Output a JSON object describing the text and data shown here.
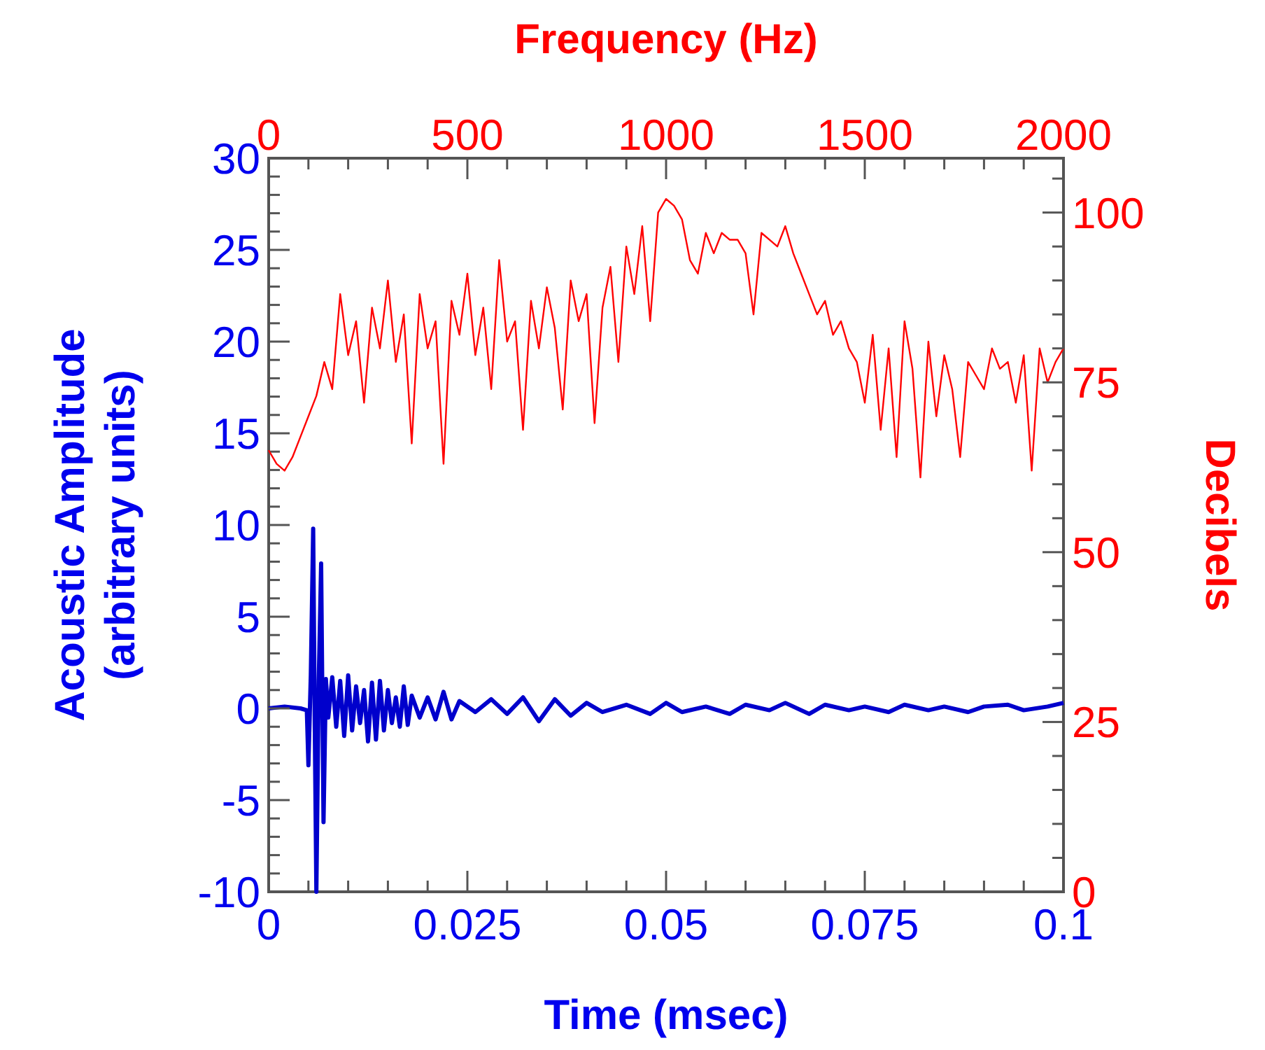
{
  "chart_data": [
    {
      "type": "line",
      "xlabel": "Time (msec)",
      "ylabel": "Acoustic Amplitude\n(arbitrary units)",
      "xlim": [
        0,
        0.1
      ],
      "ylim": [
        -10,
        30
      ],
      "xticks": [
        0,
        {
          "value": 0.005,
          "label": null
        },
        {
          "value": 0.01,
          "label": null
        },
        {
          "value": 0.015,
          "label": null
        },
        {
          "value": 0.02,
          "label": null
        },
        0.025,
        {
          "value": 0.03,
          "label": null
        },
        {
          "value": 0.035,
          "label": null
        },
        {
          "value": 0.04,
          "label": null
        },
        {
          "value": 0.045,
          "label": null
        },
        0.05,
        {
          "value": 0.055,
          "label": null
        },
        {
          "value": 0.06,
          "label": null
        },
        {
          "value": 0.065,
          "label": null
        },
        {
          "value": 0.07,
          "label": null
        },
        0.075,
        {
          "value": 0.08,
          "label": null
        },
        {
          "value": 0.085,
          "label": null
        },
        {
          "value": 0.09,
          "label": null
        },
        {
          "value": 0.095,
          "label": null
        },
        0.1
      ],
      "yticks": [
        -10,
        {
          "value": -9,
          "label": null
        },
        {
          "value": -8,
          "label": null
        },
        {
          "value": -7,
          "label": null
        },
        {
          "value": -6,
          "label": null
        },
        -5,
        {
          "value": -4,
          "label": null
        },
        {
          "value": -3,
          "label": null
        },
        {
          "value": -2,
          "label": null
        },
        {
          "value": -1,
          "label": null
        },
        0,
        {
          "value": 1,
          "label": null
        },
        {
          "value": 2,
          "label": null
        },
        {
          "value": 3,
          "label": null
        },
        {
          "value": 4,
          "label": null
        },
        5,
        {
          "value": 6,
          "label": null
        },
        {
          "value": 7,
          "label": null
        },
        {
          "value": 8,
          "label": null
        },
        {
          "value": 9,
          "label": null
        },
        10,
        {
          "value": 11,
          "label": null
        },
        {
          "value": 12,
          "label": null
        },
        {
          "value": 13,
          "label": null
        },
        {
          "value": 14,
          "label": null
        },
        15,
        {
          "value": 16,
          "label": null
        },
        {
          "value": 17,
          "label": null
        },
        {
          "value": 18,
          "label": null
        },
        {
          "value": 19,
          "label": null
        },
        20,
        {
          "value": 21,
          "label": null
        },
        {
          "value": 22,
          "label": null
        },
        {
          "value": 23,
          "label": null
        },
        {
          "value": 24,
          "label": null
        },
        25,
        {
          "value": 26,
          "label": null
        },
        {
          "value": 27,
          "label": null
        },
        {
          "value": 28,
          "label": null
        },
        {
          "value": 29,
          "label": null
        },
        30
      ],
      "grid": false,
      "marker": "none",
      "series": [
        {
          "color": "#0000cc",
          "x": [
            0,
            0.002,
            0.004,
            0.0048,
            0.005,
            0.0053,
            0.0056,
            0.0058,
            0.006,
            0.0063,
            0.0066,
            0.0069,
            0.0072,
            0.0075,
            0.008,
            0.0085,
            0.009,
            0.0095,
            0.01,
            0.0105,
            0.011,
            0.0115,
            0.012,
            0.0125,
            0.013,
            0.0135,
            0.014,
            0.0145,
            0.015,
            0.0155,
            0.016,
            0.0165,
            0.017,
            0.0175,
            0.018,
            0.019,
            0.02,
            0.021,
            0.022,
            0.023,
            0.024,
            0.026,
            0.028,
            0.03,
            0.032,
            0.034,
            0.036,
            0.038,
            0.04,
            0.042,
            0.045,
            0.048,
            0.05,
            0.052,
            0.055,
            0.058,
            0.06,
            0.063,
            0.065,
            0.068,
            0.07,
            0.073,
            0.075,
            0.078,
            0.08,
            0.083,
            0.085,
            0.088,
            0.09,
            0.093,
            0.095,
            0.098,
            0.1
          ],
          "values": [
            0,
            0.1,
            0,
            -0.1,
            -3.1,
            1.8,
            9.8,
            -1,
            -10,
            1.5,
            7.9,
            -6.2,
            1.6,
            -0.5,
            1.7,
            -1,
            1.5,
            -1.5,
            1.8,
            -1.2,
            1.2,
            -0.8,
            1,
            -1.8,
            1.4,
            -1.7,
            1.5,
            -1.2,
            1,
            -0.8,
            0.6,
            -1,
            1.2,
            -0.9,
            0.7,
            -0.5,
            0.6,
            -0.6,
            0.9,
            -0.6,
            0.4,
            -0.2,
            0.5,
            -0.3,
            0.6,
            -0.7,
            0.5,
            -0.4,
            0.3,
            -0.2,
            0.2,
            -0.3,
            0.3,
            -0.2,
            0.1,
            -0.3,
            0.2,
            -0.1,
            0.3,
            -0.3,
            0.2,
            -0.1,
            0.1,
            -0.2,
            0.2,
            -0.1,
            0.1,
            -0.2,
            0.1,
            0.2,
            -0.1,
            0.1,
            0.3
          ]
        }
      ]
    },
    {
      "type": "line",
      "xlabel": "Frequency (Hz)",
      "ylabel": "Decibels",
      "xlim": [
        0,
        2000
      ],
      "ylim": [
        0,
        108
      ],
      "xticks": [
        0,
        {
          "value": 100,
          "label": null
        },
        {
          "value": 200,
          "label": null
        },
        {
          "value": 300,
          "label": null
        },
        {
          "value": 400,
          "label": null
        },
        500,
        {
          "value": 600,
          "label": null
        },
        {
          "value": 700,
          "label": null
        },
        {
          "value": 800,
          "label": null
        },
        {
          "value": 900,
          "label": null
        },
        1000,
        {
          "value": 1100,
          "label": null
        },
        {
          "value": 1200,
          "label": null
        },
        {
          "value": 1300,
          "label": null
        },
        {
          "value": 1400,
          "label": null
        },
        1500,
        {
          "value": 1600,
          "label": null
        },
        {
          "value": 1700,
          "label": null
        },
        {
          "value": 1800,
          "label": null
        },
        {
          "value": 1900,
          "label": null
        },
        2000
      ],
      "yticks": [
        0,
        {
          "value": 5,
          "label": null
        },
        {
          "value": 10,
          "label": null
        },
        {
          "value": 15,
          "label": null
        },
        {
          "value": 20,
          "label": null
        },
        25,
        {
          "value": 30,
          "label": null
        },
        {
          "value": 35,
          "label": null
        },
        {
          "value": 40,
          "label": null
        },
        {
          "value": 45,
          "label": null
        },
        50,
        {
          "value": 55,
          "label": null
        },
        {
          "value": 60,
          "label": null
        },
        {
          "value": 65,
          "label": null
        },
        {
          "value": 70,
          "label": null
        },
        75,
        {
          "value": 80,
          "label": null
        },
        {
          "value": 85,
          "label": null
        },
        {
          "value": 90,
          "label": null
        },
        {
          "value": 95,
          "label": null
        },
        100,
        {
          "value": 105,
          "label": null
        }
      ],
      "grid": false,
      "marker": "none",
      "series": [
        {
          "color": "#ff0000",
          "x": [
            0,
            20,
            40,
            60,
            80,
            100,
            120,
            140,
            160,
            180,
            200,
            220,
            240,
            260,
            280,
            300,
            320,
            340,
            360,
            380,
            400,
            420,
            440,
            460,
            480,
            500,
            520,
            540,
            560,
            580,
            600,
            620,
            640,
            660,
            680,
            700,
            720,
            740,
            760,
            780,
            800,
            820,
            840,
            860,
            880,
            900,
            920,
            940,
            960,
            980,
            1000,
            1020,
            1040,
            1060,
            1080,
            1100,
            1120,
            1140,
            1160,
            1180,
            1200,
            1220,
            1240,
            1260,
            1280,
            1300,
            1320,
            1340,
            1360,
            1380,
            1400,
            1420,
            1440,
            1460,
            1480,
            1500,
            1520,
            1540,
            1560,
            1580,
            1600,
            1620,
            1640,
            1660,
            1680,
            1700,
            1720,
            1740,
            1760,
            1780,
            1800,
            1820,
            1840,
            1860,
            1880,
            1900,
            1920,
            1940,
            1960,
            1980,
            2000
          ],
          "values": [
            65,
            63,
            62,
            64,
            67,
            70,
            73,
            78,
            74,
            88,
            79,
            84,
            72,
            86,
            80,
            90,
            78,
            85,
            66,
            88,
            80,
            84,
            63,
            87,
            82,
            91,
            79,
            86,
            74,
            93,
            81,
            84,
            68,
            87,
            80,
            89,
            83,
            71,
            90,
            84,
            88,
            69,
            86,
            92,
            78,
            95,
            88,
            98,
            84,
            100,
            102,
            101,
            99,
            93,
            91,
            97,
            94,
            97,
            96,
            96,
            94,
            85,
            97,
            96,
            95,
            98,
            94,
            91,
            88,
            85,
            87,
            82,
            84,
            80,
            78,
            72,
            82,
            68,
            80,
            64,
            84,
            77,
            61,
            81,
            70,
            79,
            74,
            64,
            78,
            76,
            74,
            80,
            77,
            78,
            72,
            79,
            62,
            80,
            75,
            78,
            80
          ]
        }
      ]
    }
  ]
}
